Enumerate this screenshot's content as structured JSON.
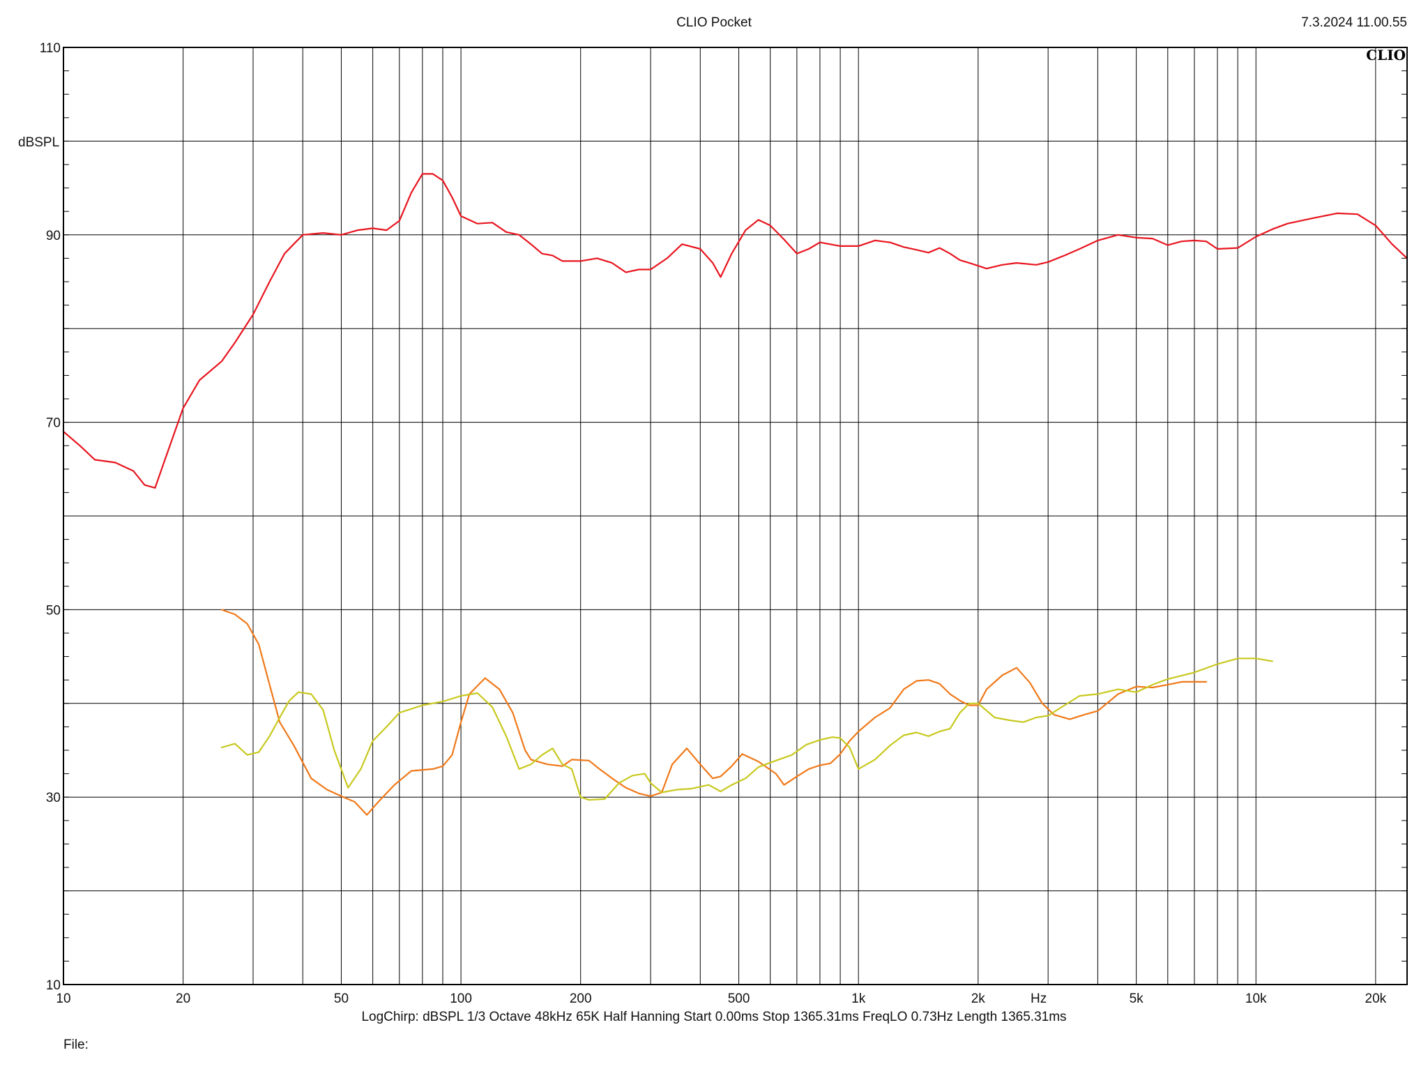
{
  "header": {
    "title": "CLIO Pocket",
    "timestamp": "7.3.2024 11.00.55"
  },
  "logo": "CLIO",
  "footer": {
    "status_line": "LogChirp:  dBSPL   1/3 Octave   48kHz   65K   Half Hanning   Start 0.00ms     Stop 1365.31ms     FreqLO 0.73Hz     Length 1365.31ms",
    "file_label": "File:"
  },
  "colors": {
    "red_trace": "#e8141e",
    "orange_trace": "#f07818",
    "yellow_trace": "#c8c81e",
    "grid": "#000000"
  },
  "chart_data": {
    "type": "line",
    "xscale": "log",
    "xlim": [
      10,
      24000
    ],
    "ylim": [
      10,
      110
    ],
    "ylabel": "dBSPL",
    "xunit": "Hz",
    "y_ticks": [
      "10",
      "30",
      "50",
      "70",
      "90",
      "110"
    ],
    "x_ticks": [
      {
        "v": 10,
        "label": "10"
      },
      {
        "v": 20,
        "label": "20"
      },
      {
        "v": 50,
        "label": "50"
      },
      {
        "v": 100,
        "label": "100"
      },
      {
        "v": 200,
        "label": "200"
      },
      {
        "v": 500,
        "label": "500"
      },
      {
        "v": 1000,
        "label": "1k"
      },
      {
        "v": 2000,
        "label": "2k"
      },
      {
        "v": 5000,
        "label": "5k"
      },
      {
        "v": 10000,
        "label": "10k"
      },
      {
        "v": 20000,
        "label": "20k"
      }
    ],
    "series": [
      {
        "color": "#e8141e",
        "points": [
          [
            10,
            69
          ],
          [
            11,
            67.5
          ],
          [
            12,
            66
          ],
          [
            13.5,
            65.7
          ],
          [
            15,
            64.8
          ],
          [
            16,
            63.3
          ],
          [
            17,
            63
          ],
          [
            18,
            66
          ],
          [
            20,
            71.5
          ],
          [
            22,
            74.5
          ],
          [
            25,
            76.5
          ],
          [
            27,
            78.5
          ],
          [
            30,
            81.5
          ],
          [
            33,
            85
          ],
          [
            36,
            88
          ],
          [
            40,
            90
          ],
          [
            45,
            90.2
          ],
          [
            50,
            90
          ],
          [
            55,
            90.5
          ],
          [
            60,
            90.7
          ],
          [
            65,
            90.5
          ],
          [
            70,
            91.5
          ],
          [
            75,
            94.5
          ],
          [
            80,
            96.5
          ],
          [
            85,
            96.5
          ],
          [
            90,
            95.8
          ],
          [
            95,
            94
          ],
          [
            100,
            92
          ],
          [
            110,
            91.2
          ],
          [
            120,
            91.3
          ],
          [
            130,
            90.3
          ],
          [
            140,
            90
          ],
          [
            150,
            89
          ],
          [
            160,
            88
          ],
          [
            170,
            87.8
          ],
          [
            180,
            87.2
          ],
          [
            200,
            87.2
          ],
          [
            220,
            87.5
          ],
          [
            240,
            87
          ],
          [
            260,
            86
          ],
          [
            280,
            86.3
          ],
          [
            300,
            86.3
          ],
          [
            330,
            87.5
          ],
          [
            360,
            89
          ],
          [
            400,
            88.5
          ],
          [
            430,
            87
          ],
          [
            450,
            85.5
          ],
          [
            480,
            88
          ],
          [
            520,
            90.5
          ],
          [
            560,
            91.6
          ],
          [
            600,
            91
          ],
          [
            650,
            89.5
          ],
          [
            700,
            88
          ],
          [
            750,
            88.5
          ],
          [
            800,
            89.2
          ],
          [
            900,
            88.8
          ],
          [
            1000,
            88.8
          ],
          [
            1100,
            89.4
          ],
          [
            1200,
            89.2
          ],
          [
            1300,
            88.7
          ],
          [
            1400,
            88.4
          ],
          [
            1500,
            88.1
          ],
          [
            1600,
            88.6
          ],
          [
            1700,
            88
          ],
          [
            1800,
            87.3
          ],
          [
            1900,
            87
          ],
          [
            2000,
            86.7
          ],
          [
            2100,
            86.4
          ],
          [
            2300,
            86.8
          ],
          [
            2500,
            87
          ],
          [
            2800,
            86.8
          ],
          [
            3000,
            87.1
          ],
          [
            3300,
            87.8
          ],
          [
            3600,
            88.5
          ],
          [
            4000,
            89.4
          ],
          [
            4500,
            90
          ],
          [
            5000,
            89.7
          ],
          [
            5500,
            89.6
          ],
          [
            6000,
            88.9
          ],
          [
            6500,
            89.3
          ],
          [
            7000,
            89.4
          ],
          [
            7500,
            89.3
          ],
          [
            8000,
            88.5
          ],
          [
            9000,
            88.6
          ],
          [
            10000,
            89.8
          ],
          [
            11000,
            90.6
          ],
          [
            12000,
            91.2
          ],
          [
            14000,
            91.8
          ],
          [
            16000,
            92.3
          ],
          [
            18000,
            92.2
          ],
          [
            20000,
            91
          ],
          [
            22000,
            89
          ],
          [
            24000,
            87.5
          ]
        ]
      },
      {
        "color": "#f07818",
        "points": [
          [
            25,
            50
          ],
          [
            27,
            49.5
          ],
          [
            29,
            48.5
          ],
          [
            31,
            46.3
          ],
          [
            33,
            42
          ],
          [
            35,
            38
          ],
          [
            38,
            35.5
          ],
          [
            42,
            32
          ],
          [
            46,
            30.8
          ],
          [
            50,
            30.1
          ],
          [
            54,
            29.5
          ],
          [
            58,
            28.1
          ],
          [
            62,
            29.5
          ],
          [
            68,
            31.3
          ],
          [
            75,
            32.8
          ],
          [
            85,
            33
          ],
          [
            90,
            33.3
          ],
          [
            95,
            34.5
          ],
          [
            100,
            38
          ],
          [
            105,
            41
          ],
          [
            115,
            42.7
          ],
          [
            125,
            41.5
          ],
          [
            135,
            39
          ],
          [
            145,
            35
          ],
          [
            150,
            34
          ],
          [
            165,
            33.5
          ],
          [
            180,
            33.3
          ],
          [
            190,
            34
          ],
          [
            210,
            33.9
          ],
          [
            220,
            33.2
          ],
          [
            240,
            32
          ],
          [
            260,
            31
          ],
          [
            280,
            30.4
          ],
          [
            300,
            30.1
          ],
          [
            320,
            30.5
          ],
          [
            340,
            33.5
          ],
          [
            370,
            35.2
          ],
          [
            400,
            33.5
          ],
          [
            430,
            32
          ],
          [
            450,
            32.2
          ],
          [
            480,
            33.3
          ],
          [
            510,
            34.6
          ],
          [
            560,
            33.8
          ],
          [
            620,
            32.5
          ],
          [
            650,
            31.3
          ],
          [
            700,
            32.2
          ],
          [
            750,
            33
          ],
          [
            800,
            33.4
          ],
          [
            850,
            33.6
          ],
          [
            900,
            34.6
          ],
          [
            950,
            36
          ],
          [
            1000,
            37
          ],
          [
            1100,
            38.5
          ],
          [
            1200,
            39.5
          ],
          [
            1300,
            41.5
          ],
          [
            1400,
            42.4
          ],
          [
            1500,
            42.5
          ],
          [
            1600,
            42.1
          ],
          [
            1700,
            41
          ],
          [
            1800,
            40.3
          ],
          [
            1900,
            39.8
          ],
          [
            2000,
            39.8
          ],
          [
            2100,
            41.5
          ],
          [
            2300,
            43
          ],
          [
            2500,
            43.8
          ],
          [
            2700,
            42.2
          ],
          [
            2900,
            40
          ],
          [
            3100,
            38.8
          ],
          [
            3400,
            38.3
          ],
          [
            3700,
            38.8
          ],
          [
            4000,
            39.2
          ],
          [
            4500,
            41
          ],
          [
            5000,
            41.8
          ],
          [
            5500,
            41.7
          ],
          [
            6000,
            42
          ],
          [
            6500,
            42.3
          ],
          [
            7000,
            42.3
          ],
          [
            7500,
            42.3
          ]
        ]
      },
      {
        "color": "#c8c81e",
        "points": [
          [
            25,
            35.3
          ],
          [
            27,
            35.7
          ],
          [
            29,
            34.5
          ],
          [
            31,
            34.8
          ],
          [
            33,
            36.5
          ],
          [
            35,
            38.5
          ],
          [
            37,
            40.3
          ],
          [
            39,
            41.2
          ],
          [
            42,
            41
          ],
          [
            45,
            39.3
          ],
          [
            48,
            35
          ],
          [
            52,
            31
          ],
          [
            56,
            33
          ],
          [
            60,
            36
          ],
          [
            65,
            37.5
          ],
          [
            70,
            39
          ],
          [
            80,
            39.8
          ],
          [
            90,
            40.2
          ],
          [
            100,
            40.8
          ],
          [
            110,
            41.1
          ],
          [
            120,
            39.6
          ],
          [
            130,
            36.5
          ],
          [
            140,
            33
          ],
          [
            150,
            33.5
          ],
          [
            160,
            34.5
          ],
          [
            170,
            35.2
          ],
          [
            180,
            33.5
          ],
          [
            190,
            33
          ],
          [
            200,
            30
          ],
          [
            210,
            29.7
          ],
          [
            230,
            29.8
          ],
          [
            250,
            31.5
          ],
          [
            270,
            32.3
          ],
          [
            290,
            32.5
          ],
          [
            300,
            31.5
          ],
          [
            320,
            30.5
          ],
          [
            350,
            30.8
          ],
          [
            380,
            30.9
          ],
          [
            420,
            31.3
          ],
          [
            450,
            30.6
          ],
          [
            480,
            31.3
          ],
          [
            520,
            32
          ],
          [
            560,
            33.2
          ],
          [
            620,
            33.9
          ],
          [
            680,
            34.5
          ],
          [
            740,
            35.6
          ],
          [
            800,
            36.1
          ],
          [
            860,
            36.4
          ],
          [
            900,
            36.3
          ],
          [
            950,
            35.3
          ],
          [
            1000,
            33
          ],
          [
            1100,
            34
          ],
          [
            1200,
            35.5
          ],
          [
            1300,
            36.6
          ],
          [
            1400,
            36.9
          ],
          [
            1500,
            36.5
          ],
          [
            1600,
            37
          ],
          [
            1700,
            37.3
          ],
          [
            1800,
            39
          ],
          [
            1900,
            40
          ],
          [
            2000,
            40
          ],
          [
            2200,
            38.5
          ],
          [
            2400,
            38.2
          ],
          [
            2600,
            38
          ],
          [
            2800,
            38.5
          ],
          [
            3000,
            38.7
          ],
          [
            3300,
            39.8
          ],
          [
            3600,
            40.8
          ],
          [
            4000,
            41
          ],
          [
            4500,
            41.5
          ],
          [
            5000,
            41.2
          ],
          [
            5500,
            42
          ],
          [
            6000,
            42.6
          ],
          [
            7000,
            43.3
          ],
          [
            8000,
            44.2
          ],
          [
            9000,
            44.8
          ],
          [
            10000,
            44.8
          ],
          [
            11000,
            44.5
          ]
        ]
      }
    ]
  }
}
